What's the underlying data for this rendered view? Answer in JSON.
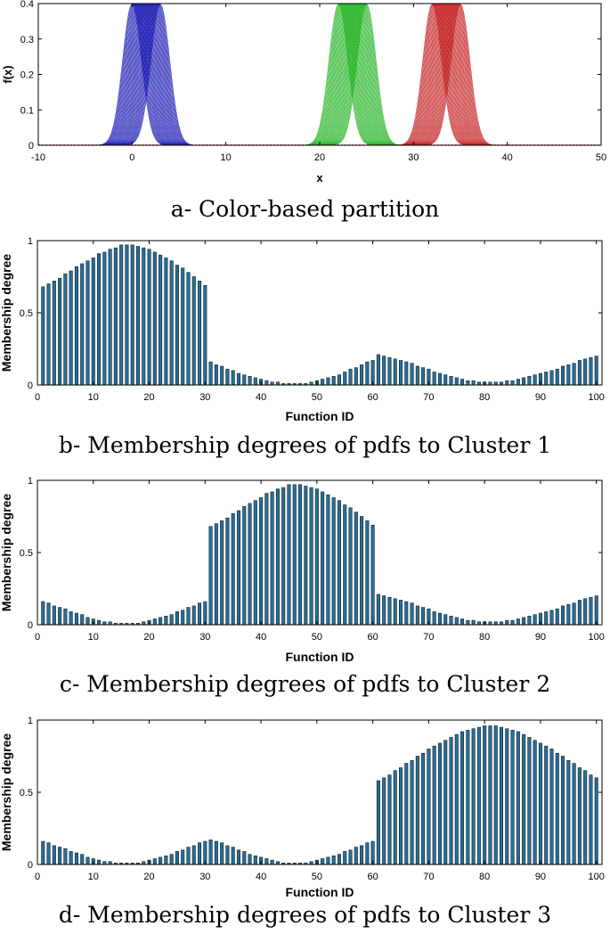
{
  "chart_data": [
    {
      "type": "area",
      "caption": "a- Color-based partition",
      "xlabel": "x",
      "ylabel": "f(x)",
      "xlim": [
        -10,
        50
      ],
      "ylim": [
        0,
        0.4
      ],
      "xticks": [
        -10,
        0,
        10,
        20,
        30,
        40,
        50
      ],
      "yticks": [
        0,
        0.1,
        0.2,
        0.3,
        0.4
      ],
      "ytick_labels": [
        "0",
        "0.1",
        "0.2",
        "0.3",
        "0.4"
      ],
      "grid": false,
      "sigma": 1,
      "peak_clipped_at": 0.4,
      "groups": [
        {
          "color": "#1a1ab4",
          "means_from": 0,
          "means_to": 3
        },
        {
          "color": "#23b423",
          "means_from": 22,
          "means_to": 25
        },
        {
          "color": "#c42020",
          "means_from": 32,
          "means_to": 35
        }
      ]
    },
    {
      "type": "bar",
      "caption": "b- Membership degrees of pdfs to Cluster 1",
      "xlabel": "Function ID",
      "ylabel": "Membership degree",
      "xlim": [
        0,
        101
      ],
      "ylim": [
        0,
        1
      ],
      "xticks": [
        0,
        10,
        20,
        30,
        40,
        50,
        60,
        70,
        80,
        90,
        100
      ],
      "yticks": [
        0,
        0.5,
        1
      ],
      "ytick_labels": [
        "0",
        "0.5",
        "1"
      ],
      "grid": false,
      "bar_color": "#2a6f97",
      "x": [
        1,
        2,
        3,
        4,
        5,
        6,
        7,
        8,
        9,
        10,
        11,
        12,
        13,
        14,
        15,
        16,
        17,
        18,
        19,
        20,
        21,
        22,
        23,
        24,
        25,
        26,
        27,
        28,
        29,
        30,
        31,
        32,
        33,
        34,
        35,
        36,
        37,
        38,
        39,
        40,
        41,
        42,
        43,
        44,
        45,
        46,
        47,
        48,
        49,
        50,
        51,
        52,
        53,
        54,
        55,
        56,
        57,
        58,
        59,
        60,
        61,
        62,
        63,
        64,
        65,
        66,
        67,
        68,
        69,
        70,
        71,
        72,
        73,
        74,
        75,
        76,
        77,
        78,
        79,
        80,
        81,
        82,
        83,
        84,
        85,
        86,
        87,
        88,
        89,
        90,
        91,
        92,
        93,
        94,
        95,
        96,
        97,
        98,
        99,
        100
      ],
      "values": [
        0.68,
        0.7,
        0.72,
        0.74,
        0.77,
        0.79,
        0.82,
        0.84,
        0.86,
        0.88,
        0.91,
        0.92,
        0.94,
        0.95,
        0.97,
        0.97,
        0.97,
        0.96,
        0.95,
        0.94,
        0.92,
        0.9,
        0.88,
        0.86,
        0.83,
        0.81,
        0.78,
        0.75,
        0.72,
        0.69,
        0.16,
        0.14,
        0.13,
        0.11,
        0.1,
        0.08,
        0.07,
        0.06,
        0.05,
        0.04,
        0.03,
        0.02,
        0.02,
        0.01,
        0.01,
        0.01,
        0.01,
        0.01,
        0.02,
        0.03,
        0.04,
        0.05,
        0.06,
        0.07,
        0.09,
        0.11,
        0.12,
        0.14,
        0.16,
        0.17,
        0.21,
        0.2,
        0.19,
        0.18,
        0.17,
        0.16,
        0.15,
        0.13,
        0.12,
        0.11,
        0.09,
        0.08,
        0.07,
        0.06,
        0.05,
        0.04,
        0.03,
        0.03,
        0.02,
        0.02,
        0.02,
        0.02,
        0.02,
        0.03,
        0.03,
        0.04,
        0.05,
        0.06,
        0.07,
        0.08,
        0.09,
        0.1,
        0.11,
        0.13,
        0.14,
        0.15,
        0.17,
        0.18,
        0.19,
        0.2
      ]
    },
    {
      "type": "bar",
      "caption": "c- Membership degrees of pdfs to Cluster 2",
      "xlabel": "Function ID",
      "ylabel": "Membership degree",
      "xlim": [
        0,
        101
      ],
      "ylim": [
        0,
        1
      ],
      "xticks": [
        0,
        10,
        20,
        30,
        40,
        50,
        60,
        70,
        80,
        90,
        100
      ],
      "yticks": [
        0,
        0.5,
        1
      ],
      "ytick_labels": [
        "0",
        "0.5",
        "1"
      ],
      "grid": false,
      "bar_color": "#2a6f97",
      "x": [
        1,
        2,
        3,
        4,
        5,
        6,
        7,
        8,
        9,
        10,
        11,
        12,
        13,
        14,
        15,
        16,
        17,
        18,
        19,
        20,
        21,
        22,
        23,
        24,
        25,
        26,
        27,
        28,
        29,
        30,
        31,
        32,
        33,
        34,
        35,
        36,
        37,
        38,
        39,
        40,
        41,
        42,
        43,
        44,
        45,
        46,
        47,
        48,
        49,
        50,
        51,
        52,
        53,
        54,
        55,
        56,
        57,
        58,
        59,
        60,
        61,
        62,
        63,
        64,
        65,
        66,
        67,
        68,
        69,
        70,
        71,
        72,
        73,
        74,
        75,
        76,
        77,
        78,
        79,
        80,
        81,
        82,
        83,
        84,
        85,
        86,
        87,
        88,
        89,
        90,
        91,
        92,
        93,
        94,
        95,
        96,
        97,
        98,
        99,
        100
      ],
      "values": [
        0.16,
        0.15,
        0.13,
        0.12,
        0.11,
        0.09,
        0.08,
        0.07,
        0.05,
        0.04,
        0.03,
        0.02,
        0.02,
        0.01,
        0.01,
        0.01,
        0.01,
        0.01,
        0.02,
        0.03,
        0.04,
        0.05,
        0.06,
        0.07,
        0.09,
        0.1,
        0.12,
        0.13,
        0.15,
        0.16,
        0.68,
        0.7,
        0.72,
        0.74,
        0.77,
        0.79,
        0.82,
        0.84,
        0.86,
        0.88,
        0.91,
        0.92,
        0.94,
        0.95,
        0.97,
        0.97,
        0.97,
        0.96,
        0.95,
        0.94,
        0.92,
        0.9,
        0.88,
        0.86,
        0.83,
        0.81,
        0.78,
        0.75,
        0.72,
        0.69,
        0.21,
        0.2,
        0.19,
        0.18,
        0.17,
        0.16,
        0.15,
        0.13,
        0.12,
        0.11,
        0.09,
        0.08,
        0.07,
        0.06,
        0.05,
        0.04,
        0.03,
        0.03,
        0.02,
        0.02,
        0.02,
        0.02,
        0.02,
        0.03,
        0.03,
        0.04,
        0.05,
        0.06,
        0.07,
        0.08,
        0.09,
        0.1,
        0.11,
        0.13,
        0.14,
        0.15,
        0.17,
        0.18,
        0.19,
        0.2
      ]
    },
    {
      "type": "bar",
      "caption": "d- Membership degrees of pdfs to Cluster 3",
      "xlabel": "Function ID",
      "ylabel": "Membership degree",
      "xlim": [
        0,
        101
      ],
      "ylim": [
        0,
        1
      ],
      "xticks": [
        0,
        10,
        20,
        30,
        40,
        50,
        60,
        70,
        80,
        90,
        100
      ],
      "yticks": [
        0,
        0.5,
        1
      ],
      "ytick_labels": [
        "0",
        "0.5",
        "1"
      ],
      "grid": false,
      "bar_color": "#2a6f97",
      "x": [
        1,
        2,
        3,
        4,
        5,
        6,
        7,
        8,
        9,
        10,
        11,
        12,
        13,
        14,
        15,
        16,
        17,
        18,
        19,
        20,
        21,
        22,
        23,
        24,
        25,
        26,
        27,
        28,
        29,
        30,
        31,
        32,
        33,
        34,
        35,
        36,
        37,
        38,
        39,
        40,
        41,
        42,
        43,
        44,
        45,
        46,
        47,
        48,
        49,
        50,
        51,
        52,
        53,
        54,
        55,
        56,
        57,
        58,
        59,
        60,
        61,
        62,
        63,
        64,
        65,
        66,
        67,
        68,
        69,
        70,
        71,
        72,
        73,
        74,
        75,
        76,
        77,
        78,
        79,
        80,
        81,
        82,
        83,
        84,
        85,
        86,
        87,
        88,
        89,
        90,
        91,
        92,
        93,
        94,
        95,
        96,
        97,
        98,
        99,
        100
      ],
      "values": [
        0.16,
        0.15,
        0.13,
        0.12,
        0.11,
        0.09,
        0.08,
        0.07,
        0.05,
        0.04,
        0.03,
        0.02,
        0.02,
        0.01,
        0.01,
        0.01,
        0.01,
        0.01,
        0.02,
        0.03,
        0.04,
        0.05,
        0.06,
        0.07,
        0.09,
        0.1,
        0.12,
        0.13,
        0.15,
        0.16,
        0.17,
        0.16,
        0.15,
        0.13,
        0.12,
        0.1,
        0.09,
        0.07,
        0.06,
        0.05,
        0.04,
        0.03,
        0.02,
        0.01,
        0.01,
        0.01,
        0.01,
        0.01,
        0.02,
        0.03,
        0.04,
        0.05,
        0.06,
        0.07,
        0.09,
        0.1,
        0.12,
        0.13,
        0.15,
        0.16,
        0.58,
        0.6,
        0.62,
        0.65,
        0.67,
        0.7,
        0.72,
        0.75,
        0.77,
        0.8,
        0.82,
        0.84,
        0.86,
        0.88,
        0.9,
        0.92,
        0.93,
        0.94,
        0.95,
        0.96,
        0.96,
        0.96,
        0.95,
        0.94,
        0.93,
        0.92,
        0.9,
        0.88,
        0.86,
        0.84,
        0.82,
        0.8,
        0.77,
        0.75,
        0.72,
        0.7,
        0.67,
        0.65,
        0.62,
        0.6
      ]
    }
  ]
}
